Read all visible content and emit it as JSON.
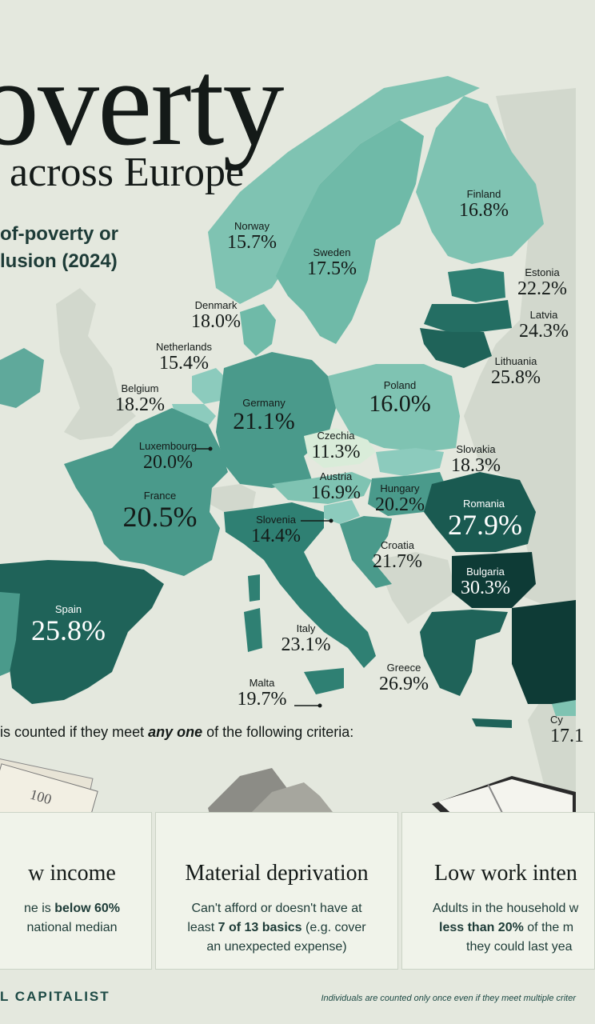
{
  "title": {
    "main": "overty",
    "sub": "across Europe",
    "subtitle_line1": "of-poverty or",
    "subtitle_line2": "lusion (2024)"
  },
  "countries": [
    {
      "name": "Norway",
      "value": "15.7%"
    },
    {
      "name": "Sweden",
      "value": "17.5%"
    },
    {
      "name": "Finland",
      "value": "16.8%"
    },
    {
      "name": "Estonia",
      "value": "22.2%"
    },
    {
      "name": "Latvia",
      "value": "24.3%"
    },
    {
      "name": "Lithuania",
      "value": "25.8%"
    },
    {
      "name": "Denmark",
      "value": "18.0%"
    },
    {
      "name": "Netherlands",
      "value": "15.4%"
    },
    {
      "name": "Belgium",
      "value": "18.2%"
    },
    {
      "name": "Germany",
      "value": "21.1%"
    },
    {
      "name": "Poland",
      "value": "16.0%"
    },
    {
      "name": "Czechia",
      "value": "11.3%"
    },
    {
      "name": "Slovakia",
      "value": "18.3%"
    },
    {
      "name": "Luxembourg",
      "value": "20.0%"
    },
    {
      "name": "Austria",
      "value": "16.9%"
    },
    {
      "name": "Hungary",
      "value": "20.2%"
    },
    {
      "name": "France",
      "value": "20.5%"
    },
    {
      "name": "Slovenia",
      "value": "14.4%"
    },
    {
      "name": "Romania",
      "value": "27.9%"
    },
    {
      "name": "Croatia",
      "value": "21.7%"
    },
    {
      "name": "Bulgaria",
      "value": "30.3%"
    },
    {
      "name": "Spain",
      "value": "25.8%"
    },
    {
      "name": "Italy",
      "value": "23.1%"
    },
    {
      "name": "Greece",
      "value": "26.9%"
    },
    {
      "name": "Malta",
      "value": "19.7%"
    },
    {
      "name": "Cy",
      "value": "17.1"
    }
  ],
  "criteria": {
    "before": " is counted if they meet ",
    "emphasis": "any one",
    "after": " of the following criteria:"
  },
  "cards": [
    {
      "title": "w income",
      "line1_a": "ne is ",
      "line1_b": "below 60%",
      "line2": " national median"
    },
    {
      "title": "Material deprivation",
      "line1": "Can't afford or doesn't have at",
      "line2_a": "least ",
      "line2_b": "7 of 13 basics",
      "line2_c": " (e.g. cover",
      "line3": "an unexpected expense)"
    },
    {
      "title": "Low work inten",
      "line1": "Adults in the household w",
      "line2_a": "less than 20%",
      "line2_b": " of the m",
      "line3": "they could last yea"
    }
  ],
  "footer": {
    "brand": "L CAPITALIST",
    "note": "Individuals are counted only once even if they meet multiple criter"
  },
  "colors": {
    "background": "#e4e8de",
    "lightest": "#d9ecd9",
    "light": "#8ccbbd",
    "mid_light": "#7fc3b2",
    "mid": "#4a9a8b",
    "mid_dark": "#2f8073",
    "dark": "#1f6359",
    "darkest": "#0e3b36"
  }
}
